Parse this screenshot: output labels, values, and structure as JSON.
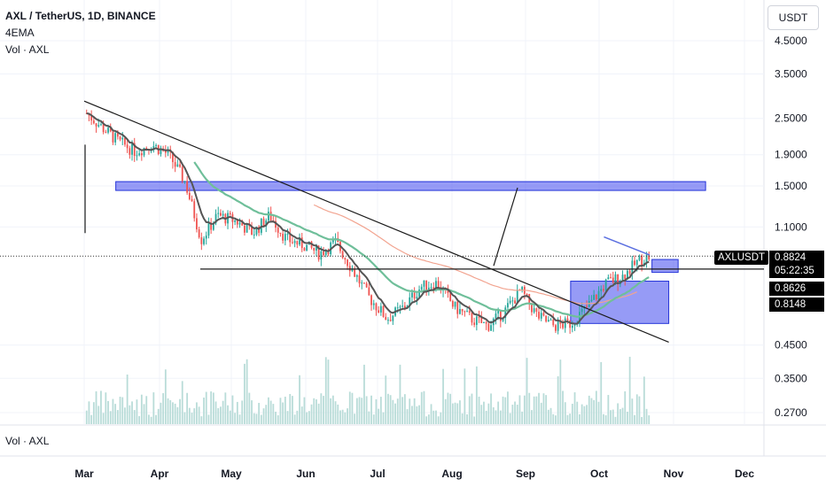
{
  "legend": {
    "symbol": "AXL / TetherUS, 1D, BINANCE",
    "indicator": "4EMA",
    "volume": "Vol · AXL"
  },
  "pane2_label": "Vol · AXL",
  "currency_button": "USDT",
  "price_tags": {
    "ticker": "AXLUSDT",
    "last_price": "0.8824",
    "countdown": "05:22:35",
    "level_1": "0.8626",
    "level_2": "0.8148"
  },
  "colors": {
    "up": "#26a69a",
    "down": "#ef5350",
    "ema_fast": "#555555",
    "ema_mid": "#6fbf9a",
    "ema_slow": "#f2a490",
    "ema_blue": "#5b6fe0",
    "zone_fill": "#5058f0",
    "volume": "#b9dcd8"
  },
  "chart_data": {
    "type": "candlestick",
    "y_scale": "log",
    "y_ticks": [
      "4.5000",
      "3.5000",
      "2.5000",
      "1.9000",
      "1.5000",
      "1.1000",
      "0.4500",
      "0.3500",
      "0.2700"
    ],
    "x_ticks": [
      "Mar",
      "Apr",
      "May",
      "Jun",
      "Jul",
      "Aug",
      "Sep",
      "Oct",
      "Nov",
      "Dec"
    ],
    "close_path": [
      [
        "Mar 2",
        2.6
      ],
      [
        "Mar 8",
        2.35
      ],
      [
        "Mar 15",
        2.1
      ],
      [
        "Mar 22",
        1.95
      ],
      [
        "Mar 29",
        2.05
      ],
      [
        "Apr 5",
        1.9
      ],
      [
        "Apr 12",
        1.55
      ],
      [
        "Apr 19",
        1.0
      ],
      [
        "Apr 26",
        1.2
      ],
      [
        "May 3",
        1.15
      ],
      [
        "May 10",
        1.05
      ],
      [
        "May 17",
        1.2
      ],
      [
        "May 24",
        1.0
      ],
      [
        "May 31",
        0.96
      ],
      [
        "Jun 7",
        0.9
      ],
      [
        "Jun 14",
        0.98
      ],
      [
        "Jun 21",
        0.8
      ],
      [
        "Jun 28",
        0.65
      ],
      [
        "Jul 5",
        0.55
      ],
      [
        "Jul 12",
        0.6
      ],
      [
        "Jul 19",
        0.7
      ],
      [
        "Jul 26",
        0.72
      ],
      [
        "Aug 2",
        0.6
      ],
      [
        "Aug 9",
        0.55
      ],
      [
        "Aug 16",
        0.52
      ],
      [
        "Aug 23",
        0.58
      ],
      [
        "Aug 30",
        0.68
      ],
      [
        "Sep 6",
        0.56
      ],
      [
        "Sep 13",
        0.52
      ],
      [
        "Sep 20",
        0.53
      ],
      [
        "Sep 27",
        0.6
      ],
      [
        "Oct 4",
        0.72
      ],
      [
        "Oct 11",
        0.76
      ],
      [
        "Oct 18",
        0.86
      ],
      [
        "Oct 22",
        0.88
      ]
    ],
    "horizontal_lines": [
      0.8824
    ],
    "zones": [
      {
        "from": "Mar 14",
        "to": "Nov 15",
        "low": 1.45,
        "high": 1.55
      },
      {
        "from": "Oct 23",
        "to": "Nov 3",
        "low": 0.78,
        "high": 0.86
      },
      {
        "from": "Sep 20",
        "to": "Oct 30",
        "low": 0.53,
        "high": 0.73
      }
    ],
    "trendlines": [
      {
        "from": [
          "Mar 1",
          2.85
        ],
        "to": [
          "Oct 30",
          0.46
        ]
      }
    ]
  }
}
